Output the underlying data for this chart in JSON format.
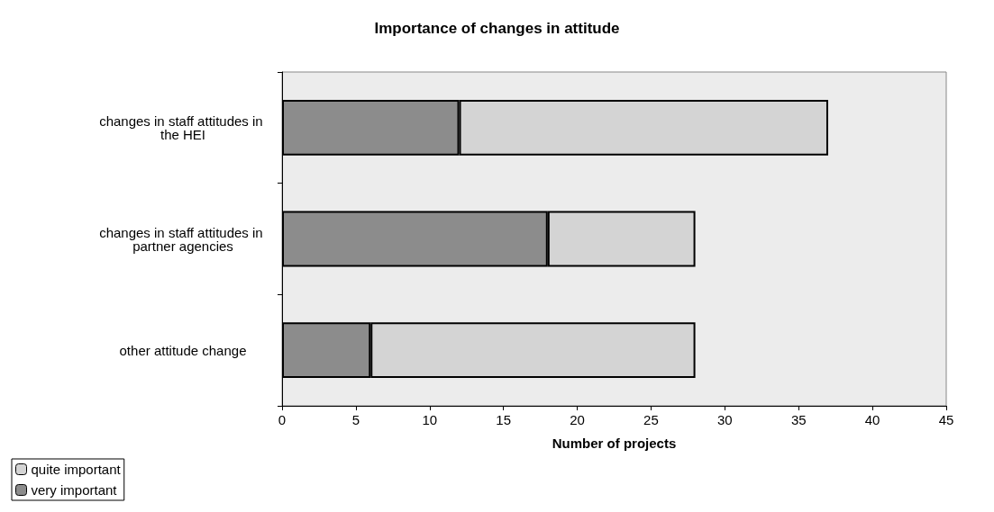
{
  "chart_data": {
    "type": "bar",
    "orientation": "horizontal",
    "stacked": true,
    "title": "Importance of changes in attitude",
    "xlabel": "Number of projects",
    "categories": [
      "changes in staff attitudes in the HEI",
      "changes in staff attitudes in partner agencies",
      "other attitude change"
    ],
    "series": [
      {
        "name": "very important",
        "color": "#8c8c8c",
        "values": [
          12,
          18,
          6
        ]
      },
      {
        "name": "quite important",
        "color": "#d4d4d4",
        "values": [
          25,
          10,
          22
        ]
      }
    ],
    "xlim": [
      0,
      45
    ],
    "xticks": [
      0,
      5,
      10,
      15,
      20,
      25,
      30,
      35,
      40,
      45
    ],
    "grid": false,
    "legend": "bottom left"
  }
}
